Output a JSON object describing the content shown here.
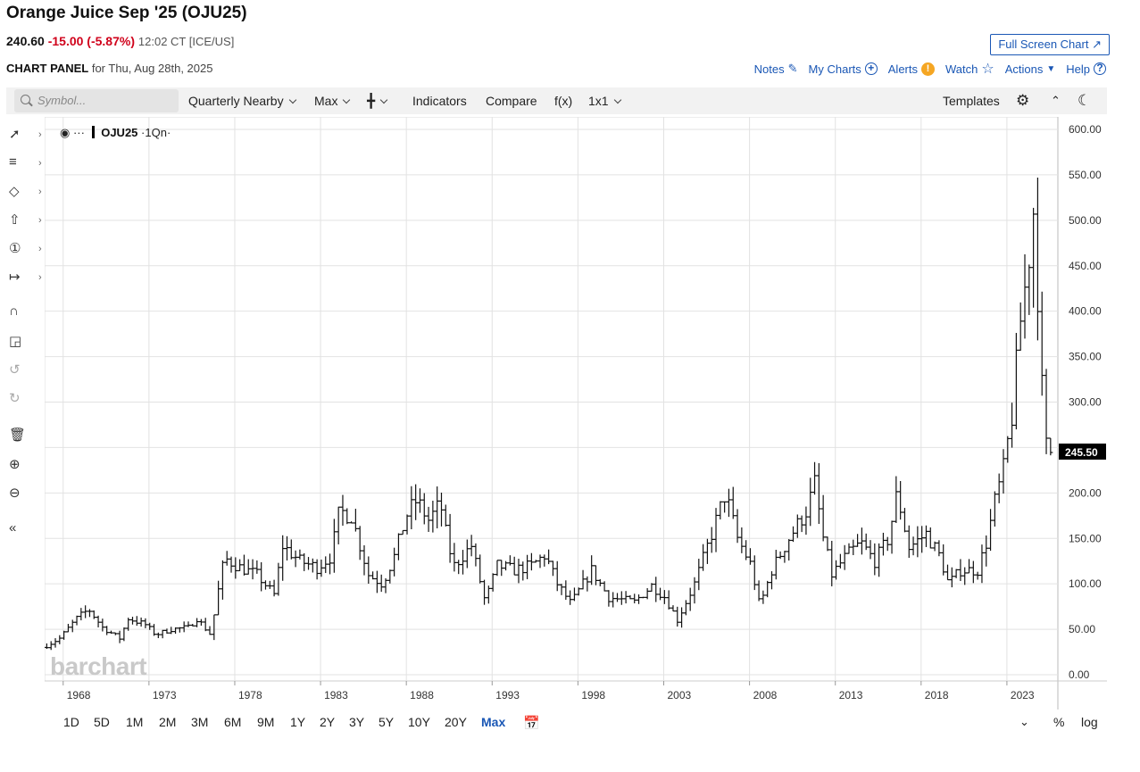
{
  "header": {
    "title": "Orange Juice Sep '25 (OJU25)",
    "last": "240.60",
    "change": "-15.00 (-5.87%)",
    "time": "12:02 CT [ICE/US]",
    "full_screen_label": "Full Screen Chart",
    "panel_title": "CHART PANEL",
    "panel_date": "for Thu, Aug 28th, 2025"
  },
  "links": {
    "notes": "Notes",
    "my_charts": "My Charts",
    "alerts": "Alerts",
    "watch": "Watch",
    "actions": "Actions",
    "help": "Help"
  },
  "toolbar": {
    "search_placeholder": "Symbol...",
    "period": "Quarterly Nearby",
    "range": "Max",
    "indicators": "Indicators",
    "compare": "Compare",
    "fx": "f(x)",
    "layout": "1x1",
    "templates": "Templates"
  },
  "legend": {
    "symbol": "OJU25",
    "interval": "·1Qn·"
  },
  "watermark": "barchart",
  "last_price_label": "245.50",
  "ranges": [
    "1D",
    "5D",
    "1M",
    "2M",
    "3M",
    "6M",
    "9M",
    "1Y",
    "2Y",
    "3Y",
    "5Y",
    "10Y",
    "20Y",
    "Max"
  ],
  "selected_range": "Max",
  "scale_buttons": {
    "percent": "%",
    "log": "log"
  },
  "chart_data": {
    "type": "ohlc-bar",
    "interval": "quarterly",
    "ylim": [
      0,
      600
    ],
    "y_ticks": [
      "0.00",
      "50.00",
      "100.00",
      "150.00",
      "200.00",
      "250.00",
      "300.00",
      "350.00",
      "400.00",
      "450.00",
      "500.00",
      "550.00",
      "600.00"
    ],
    "x_ticks": [
      "1968",
      "1973",
      "1978",
      "1983",
      "1988",
      "1993",
      "1998",
      "2003",
      "2008",
      "2013",
      "2018",
      "2023"
    ],
    "last_price": 245.5,
    "series_anchors": [
      [
        1967.0,
        30
      ],
      [
        1968.0,
        40
      ],
      [
        1969.0,
        62
      ],
      [
        1969.7,
        72
      ],
      [
        1970.5,
        52
      ],
      [
        1971.5,
        40
      ],
      [
        1972.0,
        62
      ],
      [
        1973.0,
        55
      ],
      [
        1973.6,
        44
      ],
      [
        1974.5,
        50
      ],
      [
        1975.5,
        52
      ],
      [
        1976.0,
        62
      ],
      [
        1976.8,
        44
      ],
      [
        1977.2,
        88
      ],
      [
        1977.6,
        128
      ],
      [
        1978.5,
        118
      ],
      [
        1979.5,
        110
      ],
      [
        1980.5,
        88
      ],
      [
        1981.0,
        142
      ],
      [
        1982.0,
        125
      ],
      [
        1983.0,
        118
      ],
      [
        1983.8,
        130
      ],
      [
        1984.3,
        180
      ],
      [
        1985.0,
        175
      ],
      [
        1986.0,
        110
      ],
      [
        1986.8,
        100
      ],
      [
        1987.5,
        130
      ],
      [
        1988.2,
        175
      ],
      [
        1988.8,
        192
      ],
      [
        1989.5,
        170
      ],
      [
        1990.2,
        188
      ],
      [
        1990.6,
        145
      ],
      [
        1991.0,
        120
      ],
      [
        1992.0,
        142
      ],
      [
        1992.8,
        80
      ],
      [
        1993.5,
        120
      ],
      [
        1994.5,
        115
      ],
      [
        1995.5,
        120
      ],
      [
        1996.3,
        132
      ],
      [
        1997.0,
        100
      ],
      [
        1997.8,
        78
      ],
      [
        1998.5,
        100
      ],
      [
        1999.0,
        115
      ],
      [
        2000.0,
        85
      ],
      [
        2001.5,
        80
      ],
      [
        2002.5,
        98
      ],
      [
        2003.3,
        85
      ],
      [
        2004.0,
        60
      ],
      [
        2005.0,
        100
      ],
      [
        2006.0,
        155
      ],
      [
        2006.8,
        200
      ],
      [
        2007.5,
        150
      ],
      [
        2008.3,
        120
      ],
      [
        2008.8,
        75
      ],
      [
        2009.5,
        115
      ],
      [
        2010.5,
        150
      ],
      [
        2011.5,
        180
      ],
      [
        2012.0,
        210
      ],
      [
        2012.5,
        150
      ],
      [
        2013.0,
        110
      ],
      [
        2013.8,
        130
      ],
      [
        2014.7,
        145
      ],
      [
        2015.5,
        125
      ],
      [
        2016.3,
        150
      ],
      [
        2016.8,
        200
      ],
      [
        2017.5,
        140
      ],
      [
        2018.5,
        155
      ],
      [
        2019.3,
        130
      ],
      [
        2019.8,
        100
      ],
      [
        2020.5,
        115
      ],
      [
        2021.5,
        115
      ],
      [
        2022.0,
        145
      ],
      [
        2022.5,
        190
      ],
      [
        2023.0,
        225
      ],
      [
        2023.5,
        285
      ],
      [
        2024.0,
        390
      ],
      [
        2024.4,
        445
      ],
      [
        2024.8,
        520
      ],
      [
        2025.1,
        375
      ],
      [
        2025.4,
        255
      ],
      [
        2025.6,
        245.5
      ]
    ]
  }
}
